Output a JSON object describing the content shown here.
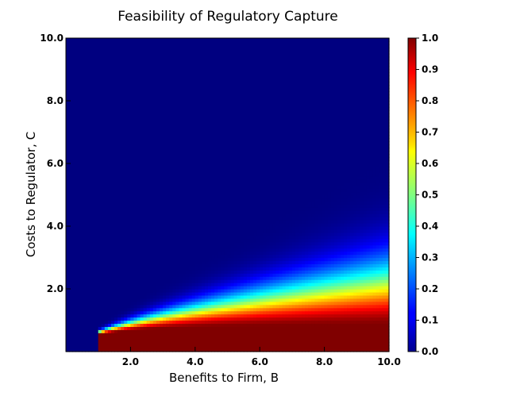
{
  "chart_data": {
    "type": "heatmap",
    "title": "Feasibility of Regulatory Capture",
    "xlabel": "Benefits to Firm, B",
    "ylabel": "Costs to Regulator, C",
    "xlim": [
      0.0,
      10.0
    ],
    "ylim": [
      0.0,
      10.0
    ],
    "x_ticks": [
      "2.0",
      "4.0",
      "6.0",
      "8.0",
      "10.0"
    ],
    "y_ticks": [
      "2.0",
      "4.0",
      "6.0",
      "8.0",
      "10.0"
    ],
    "colorbar": {
      "range": [
        0.0,
        1.0
      ],
      "ticks": [
        "0.0",
        "0.1",
        "0.2",
        "0.3",
        "0.4",
        "0.5",
        "0.6",
        "0.7",
        "0.8",
        "0.9",
        "1.0"
      ],
      "colormap": "jet"
    },
    "grid": false,
    "feasible_region_starts_at_B": 1.0,
    "description_of_values": "value is 0 for B < 1; for B >= 1 value is ~1 near C = 0 to ~0.8, decreasing toward 0 as C rises; the transition band widens with B, reaching about C = 2.5 at B = 10"
  }
}
